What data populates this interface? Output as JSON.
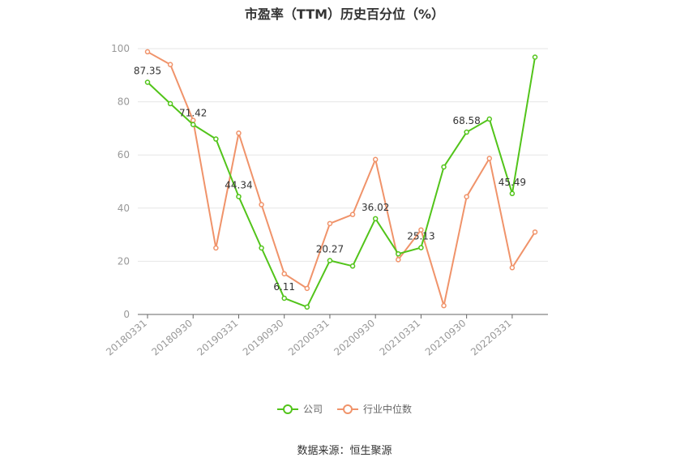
{
  "chart_data": {
    "type": "line",
    "title": "市盈率（TTM）历史百分位（%）",
    "xlabel": "",
    "ylabel": "",
    "ylim": [
      0,
      100
    ],
    "yticks": [
      0,
      20,
      40,
      60,
      80,
      100
    ],
    "tick_labels": [
      "20180331",
      "20180930",
      "20190331",
      "20190930",
      "20200331",
      "20200930",
      "20210331",
      "20210930",
      "20220331"
    ],
    "tick_index": [
      0,
      2,
      4,
      6,
      8,
      10,
      12,
      14,
      16
    ],
    "grid": true,
    "legend_position": "bottom",
    "series": [
      {
        "name": "公司",
        "color": "#52c41a",
        "values": [
          87.35,
          79.3,
          71.42,
          66.0,
          44.34,
          25.0,
          6.11,
          2.8,
          20.27,
          18.2,
          36.02,
          22.8,
          25.13,
          55.5,
          68.58,
          73.5,
          45.49,
          96.8
        ],
        "labels": {
          "0": "87.35",
          "2": "71.42",
          "4": "44.34",
          "6": "6.11",
          "8": "20.27",
          "10": "36.02",
          "12": "25.13",
          "14": "68.58",
          "16": "45.49"
        }
      },
      {
        "name": "行业中位数",
        "color": "#f0936a",
        "values": [
          98.8,
          94.0,
          73.0,
          25.0,
          68.2,
          41.3,
          15.3,
          9.8,
          34.2,
          37.6,
          58.3,
          20.6,
          31.8,
          3.3,
          44.3,
          58.7,
          17.6,
          31.0
        ]
      }
    ]
  },
  "source_text": "数据来源：恒生聚源"
}
